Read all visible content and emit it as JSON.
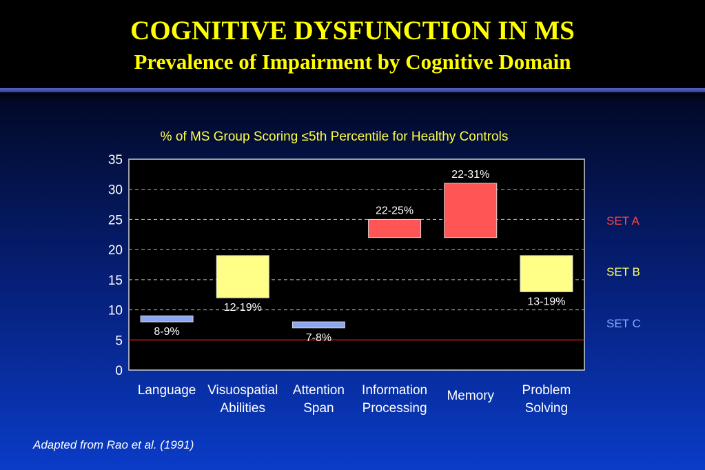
{
  "header": {
    "title": "COGNITIVE DYSFUNCTION IN MS",
    "subtitle": "Prevalence of Impairment by Cognitive Domain"
  },
  "colors": {
    "set_a": "#ff5555",
    "set_b": "#ffff88",
    "set_c": "#8aa6f0",
    "accent_title": "#ffff00",
    "reference_line": "#cc1111"
  },
  "legend": [
    {
      "label": "SET A",
      "color": "#ff4444"
    },
    {
      "label": "SET B",
      "color": "#ffff66"
    },
    {
      "label": "SET C",
      "color": "#88aaff"
    }
  ],
  "source": "Adapted from Rao et al. (1991)",
  "chart_data": {
    "type": "bar",
    "title": "% of MS Group Scoring ≤5th Percentile for Healthy Controls",
    "xlabel": "",
    "ylabel": "",
    "ylim": [
      0,
      35
    ],
    "yticks": [
      0,
      5,
      10,
      15,
      20,
      25,
      30,
      35
    ],
    "grid": true,
    "reference_line": 5,
    "categories": [
      {
        "label": "Language",
        "label_lines": [
          "Language"
        ],
        "low": 8,
        "high": 9,
        "range_label": "8-9%",
        "set": "SET C",
        "label_pos": "below"
      },
      {
        "label": "Visuospatial Abilities",
        "label_lines": [
          "Visuospatial",
          "Abilities"
        ],
        "low": 12,
        "high": 19,
        "range_label": "12-19%",
        "set": "SET B",
        "label_pos": "below"
      },
      {
        "label": "Attention Span",
        "label_lines": [
          "Attention",
          "Span"
        ],
        "low": 7,
        "high": 8,
        "range_label": "7-8%",
        "set": "SET C",
        "label_pos": "below"
      },
      {
        "label": "Information Processing",
        "label_lines": [
          "Information",
          "Processing"
        ],
        "low": 22,
        "high": 25,
        "range_label": "22-25%",
        "set": "SET A",
        "label_pos": "above"
      },
      {
        "label": "Memory",
        "label_lines": [
          "Memory"
        ],
        "low": 22,
        "high": 31,
        "range_label": "22-31%",
        "set": "SET A",
        "label_pos": "above"
      },
      {
        "label": "Problem Solving",
        "label_lines": [
          "Problem",
          "Solving"
        ],
        "low": 13,
        "high": 19,
        "range_label": "13-19%",
        "set": "SET B",
        "label_pos": "below"
      }
    ]
  }
}
